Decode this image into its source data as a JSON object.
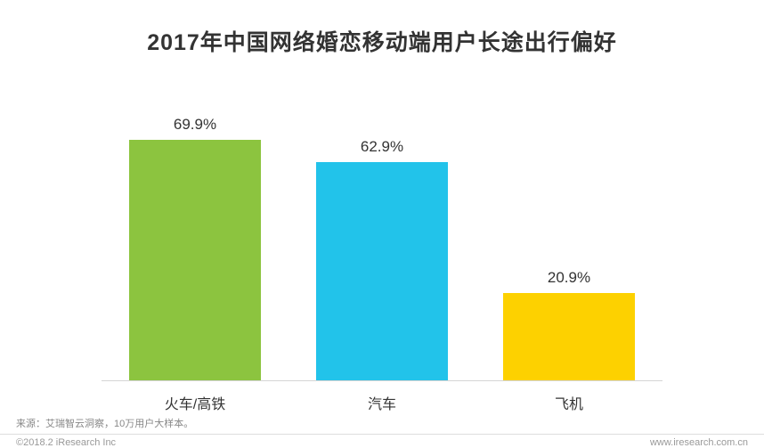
{
  "title": "2017年中国网络婚恋移动端用户长途出行偏好",
  "chart_data": {
    "type": "bar",
    "title": "2017年中国网络婚恋移动端用户长途出行偏好",
    "categories": [
      "火车/高铁",
      "汽车",
      "飞机"
    ],
    "values": [
      69.9,
      62.9,
      20.9
    ],
    "value_labels": [
      "69.9%",
      "62.9%",
      "20.9%"
    ],
    "bar_colors": [
      "#8cc43f",
      "#22c3ea",
      "#fdd100"
    ],
    "xlabel": "",
    "ylabel": "",
    "ylim": [
      0,
      80
    ],
    "grid": false,
    "legend": "none",
    "axis_line_color": "#d5d5d5"
  },
  "footer": {
    "source_note": "来源：艾瑞智云洞察，10万用户大样本。",
    "copyright": "©2018.2 iResearch Inc",
    "website": "www.iresearch.com.cn"
  }
}
